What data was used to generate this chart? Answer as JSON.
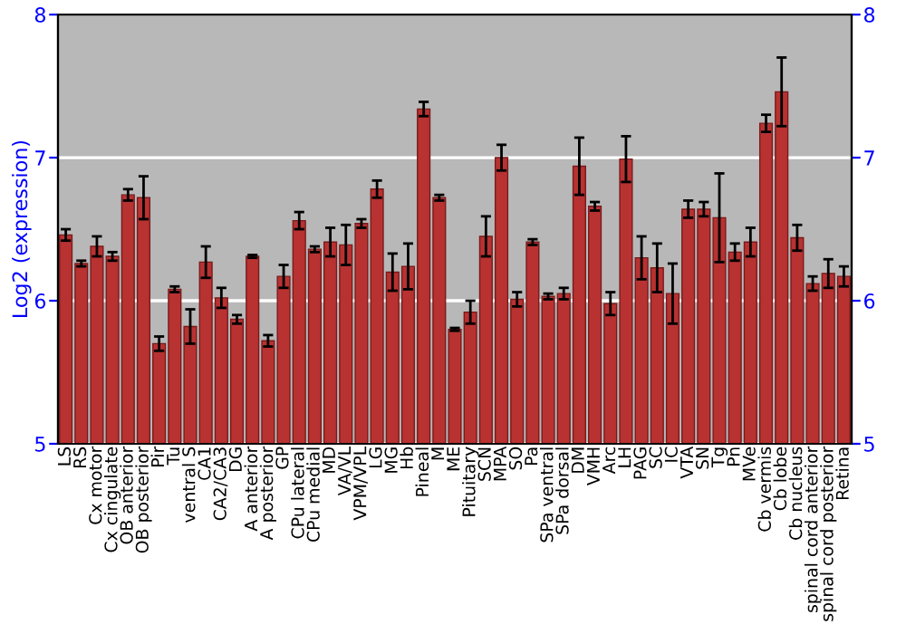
{
  "chart_data": {
    "type": "bar",
    "ylabel": "Log2 (expression)",
    "color": "#b83232",
    "categories": [
      "LS",
      "RS",
      "Cx motor",
      "Cx cingulate",
      "OB anterior",
      "OB posterior",
      "Pir",
      "Tu",
      "ventral S",
      "CA1",
      "CA2/CA3",
      "DG",
      "A anterior",
      "A posterior",
      "GP",
      "CPu lateral",
      "CPu medial",
      "MD",
      "VA/VL",
      "VPM/VPL",
      "LG",
      "MG",
      "Hb",
      "Pineal",
      "M",
      "ME",
      "Pituitary",
      "SCN",
      "MPA",
      "SO",
      "Pa",
      "SPa ventral",
      "SPa dorsal",
      "DM",
      "VMH",
      "Arc",
      "LH",
      "PAG",
      "SC",
      "IC",
      "VTA",
      "SN",
      "Tg",
      "Pn",
      "MVe",
      "Cb vermis",
      "Cb lobe",
      "Cb nucleus",
      "spinal cord anterior",
      "spinal cord posterior",
      "Retina"
    ],
    "values": [
      6.46,
      6.26,
      6.38,
      6.31,
      6.74,
      6.72,
      5.7,
      6.08,
      5.82,
      6.27,
      6.02,
      5.87,
      6.31,
      5.72,
      6.17,
      6.56,
      6.36,
      6.41,
      6.39,
      6.54,
      6.78,
      6.2,
      6.24,
      7.34,
      6.72,
      5.8,
      5.92,
      6.45,
      7.0,
      6.01,
      6.41,
      6.03,
      6.05,
      6.94,
      6.66,
      5.98,
      6.99,
      6.3,
      6.23,
      6.05,
      6.64,
      6.64,
      6.58,
      6.34,
      6.41,
      7.24,
      7.46,
      6.44,
      6.12,
      6.19,
      6.17
    ],
    "errors": [
      0.04,
      0.02,
      0.07,
      0.03,
      0.04,
      0.15,
      0.05,
      0.02,
      0.12,
      0.11,
      0.07,
      0.03,
      0.01,
      0.04,
      0.08,
      0.06,
      0.02,
      0.1,
      0.14,
      0.03,
      0.06,
      0.13,
      0.16,
      0.05,
      0.02,
      0.01,
      0.08,
      0.14,
      0.09,
      0.05,
      0.02,
      0.02,
      0.04,
      0.2,
      0.03,
      0.08,
      0.16,
      0.15,
      0.17,
      0.21,
      0.06,
      0.05,
      0.31,
      0.06,
      0.1,
      0.06,
      0.24,
      0.09,
      0.05,
      0.1,
      0.07
    ],
    "ylim": [
      5,
      8
    ],
    "yticks": [
      5,
      6,
      7,
      8
    ],
    "y2lim": [
      5,
      8
    ],
    "y2ticks": [
      5,
      6,
      7,
      8
    ],
    "grid": "y"
  }
}
